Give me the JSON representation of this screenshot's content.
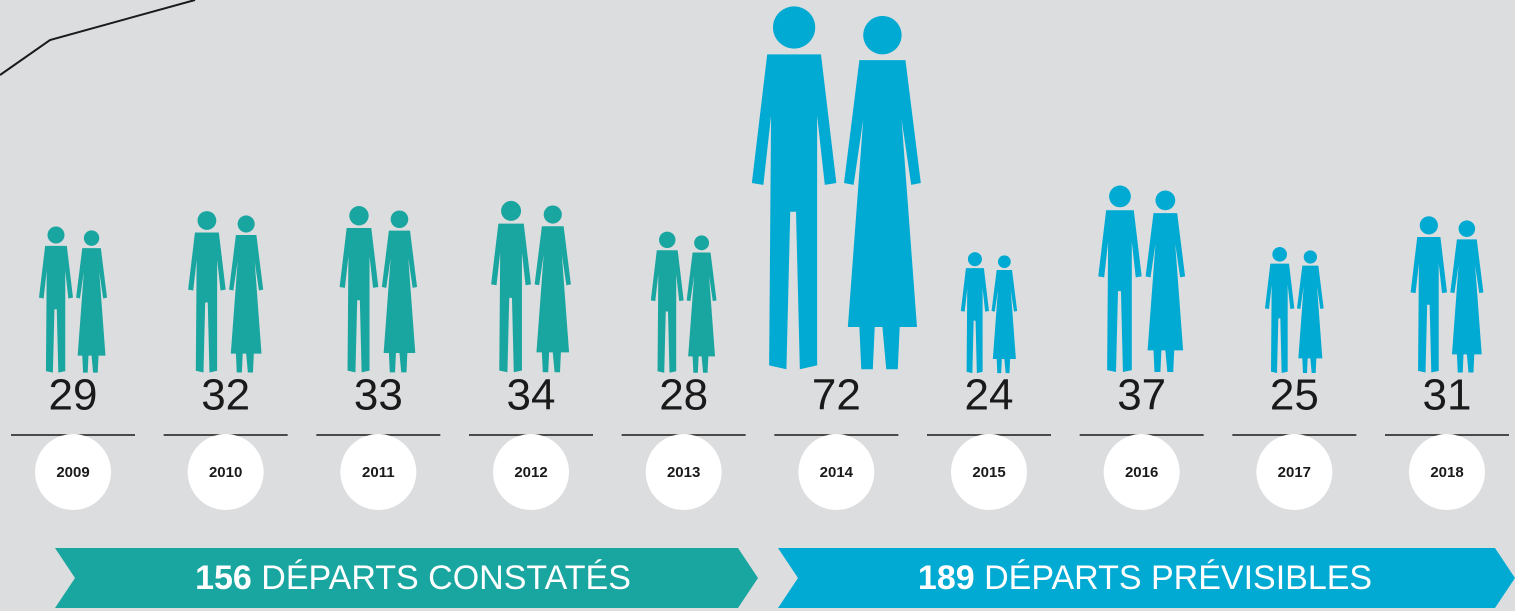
{
  "chart_data": {
    "type": "pictogram",
    "categories": [
      "2009",
      "2010",
      "2011",
      "2012",
      "2013",
      "2014",
      "2015",
      "2016",
      "2017",
      "2018"
    ],
    "series": [
      {
        "name": "DÉPARTS CONSTATÉS",
        "total": 156,
        "color": "#1aa6a0",
        "values": [
          29,
          32,
          33,
          34,
          28,
          null,
          null,
          null,
          null,
          null
        ]
      },
      {
        "name": "DÉPARTS PRÉVISIBLES",
        "total": 189,
        "color": "#00aad2",
        "values": [
          null,
          null,
          null,
          null,
          null,
          72,
          24,
          37,
          25,
          31
        ]
      }
    ]
  }
}
